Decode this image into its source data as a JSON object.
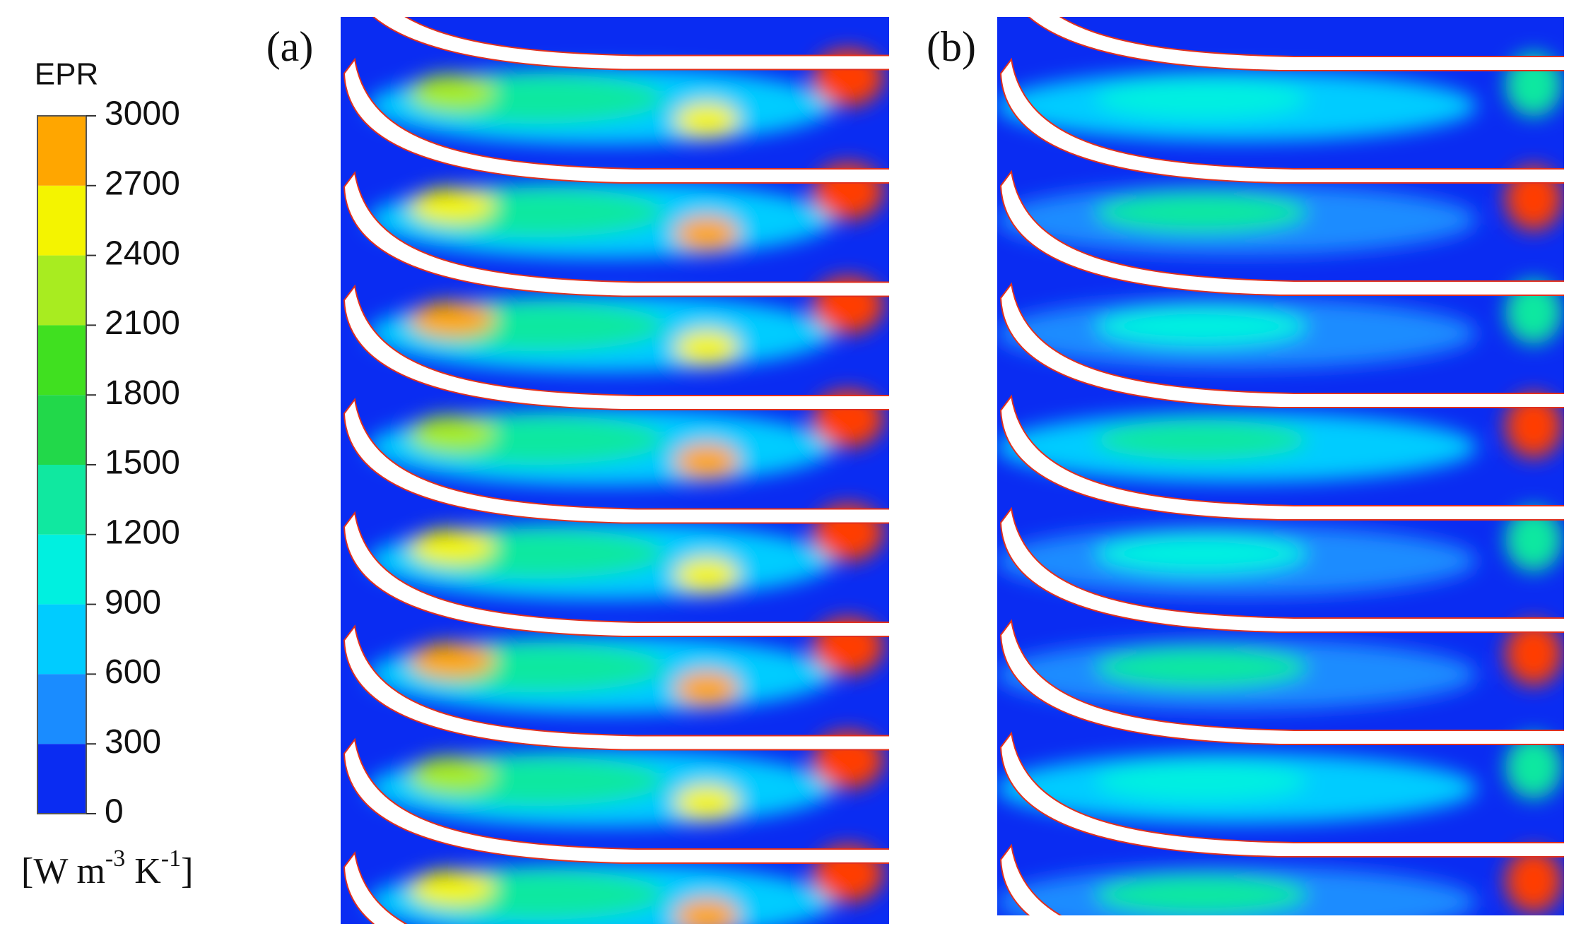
{
  "colorbar": {
    "title": "EPR",
    "ticks": [
      0,
      300,
      600,
      900,
      1200,
      1500,
      1800,
      2100,
      2400,
      2700,
      3000
    ],
    "colors": [
      "#0a2cf2",
      "#1a8cff",
      "#00ccff",
      "#00f0e0",
      "#10e8a0",
      "#22d84a",
      "#40e020",
      "#a8ec20",
      "#f4f400",
      "#ffa600",
      "#ff3c00"
    ],
    "unit": {
      "open": "[W m",
      "exp1": "-3",
      "mid": " K",
      "exp2": "-1",
      "close": "]"
    }
  },
  "panels": [
    {
      "label": "(a)"
    },
    {
      "label": "(b)"
    }
  ]
}
